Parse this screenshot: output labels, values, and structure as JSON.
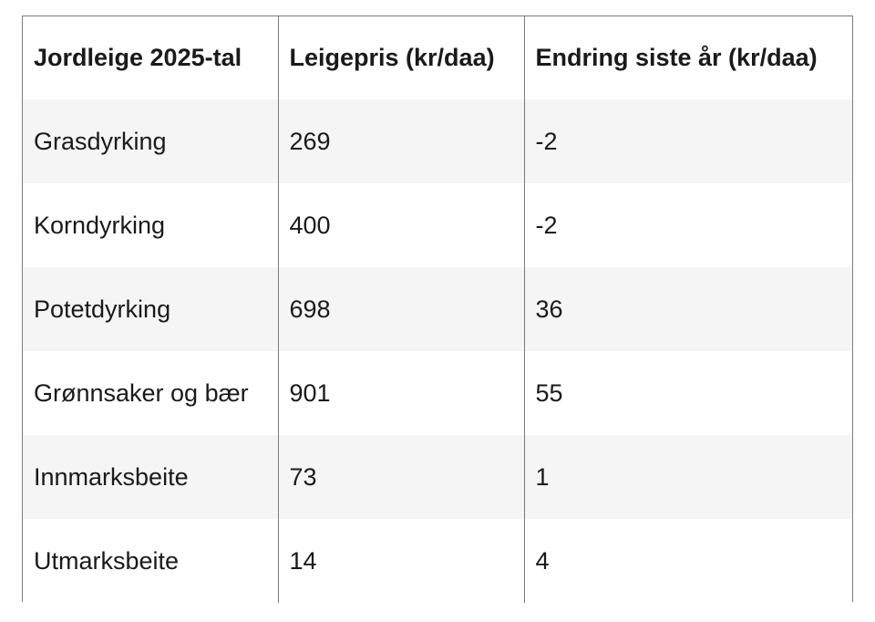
{
  "table": {
    "headers": [
      "Jordleige 2025-tal",
      "Leigepris (kr/daa)",
      "Endring siste år (kr/daa)"
    ],
    "rows": [
      [
        "Grasdyrking",
        "269",
        "-2"
      ],
      [
        "Korndyrking",
        "400",
        "-2"
      ],
      [
        "Potetdyrking",
        "698",
        "36"
      ],
      [
        "Grønnsaker og bær",
        "901",
        "55"
      ],
      [
        "Innmarksbeite",
        "73",
        "1"
      ],
      [
        "Utmarksbeite",
        "14",
        "4"
      ]
    ]
  }
}
